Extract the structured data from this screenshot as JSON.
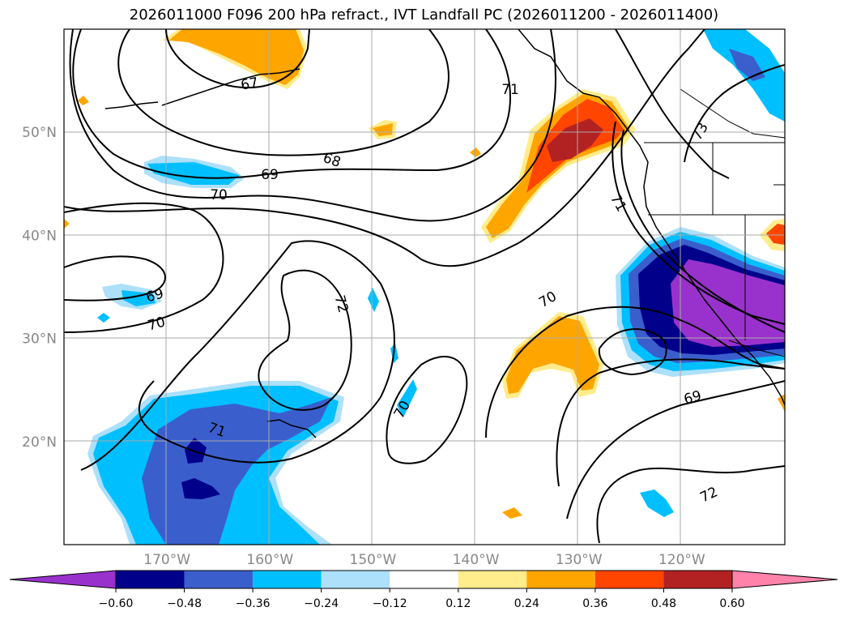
{
  "chart_data": {
    "type": "heatmap",
    "title": "2026011000 F096 200 hPa refract., IVT Landfall PC (2026011200 - 2026011400)",
    "map": {
      "lon_range": [
        -180,
        -110
      ],
      "lat_range": [
        10,
        60
      ],
      "grid": true,
      "lon_ticks": [
        "170°W",
        "160°W",
        "150°W",
        "140°W",
        "130°W",
        "120°W"
      ],
      "lat_ticks": [
        "50°N",
        "40°N",
        "30°N",
        "20°N"
      ]
    },
    "colorbar": {
      "orientation": "horizontal",
      "extend": "both",
      "levels": [
        -0.6,
        -0.48,
        -0.36,
        -0.24,
        -0.12,
        0.12,
        0.24,
        0.36,
        0.48,
        0.6
      ],
      "tick_labels": [
        "−0.60",
        "−0.48",
        "−0.36",
        "−0.24",
        "−0.12",
        "0.12",
        "0.24",
        "0.36",
        "0.48",
        "0.60"
      ],
      "colors": [
        "#9932CC",
        "#00008B",
        "#3A5FCD",
        "#00BFFF",
        "#ADE0FA",
        "#FFFFFF",
        "#FFEC8B",
        "#FFA500",
        "#FF4500",
        "#B22222",
        "#FF82AB"
      ]
    },
    "contours": {
      "field": "200 hPa refractivity",
      "labels": [
        "67",
        "68",
        "69",
        "69",
        "69",
        "70",
        "70",
        "70",
        "70",
        "71",
        "71",
        "71",
        "72",
        "72",
        "73"
      ]
    }
  }
}
